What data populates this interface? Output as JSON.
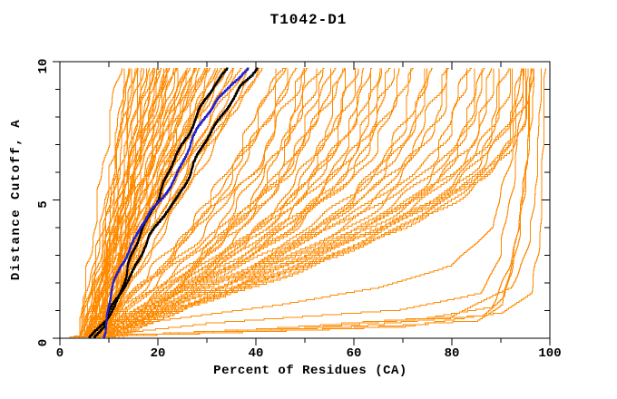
{
  "chart_data": {
    "type": "line",
    "title": "T1042-D1",
    "xlabel": "Percent of Residues (CA)",
    "ylabel": "Distance Cutoff, A",
    "xlim": [
      0,
      100
    ],
    "ylim": [
      0,
      10
    ],
    "x_major_ticks": [
      0,
      20,
      40,
      60,
      80,
      100
    ],
    "x_minor_ticks": [
      10,
      30,
      50,
      70,
      90
    ],
    "y_major_ticks": [
      0,
      5,
      10
    ],
    "y_minor_ticks": [
      1,
      2,
      3,
      4,
      6,
      7,
      8,
      9
    ],
    "grid": false,
    "legend": "none",
    "curve_top_cutoff": 9.75,
    "colors": {
      "model_curves": "#ff8a00",
      "highlight_black": "#000000",
      "highlight_blue": "#2222cc",
      "frame": "#000000",
      "background": "#ffffff"
    },
    "model_curves_format": "[percent_at_cutoff_0, percent_at_cutoff_9.75, bow]",
    "model_curves": [
      [
        4,
        12,
        -0.05
      ],
      [
        7,
        13,
        0.02
      ],
      [
        5,
        14,
        -0.03
      ],
      [
        9,
        14,
        0.0
      ],
      [
        6,
        15,
        -0.07
      ],
      [
        8,
        15,
        0.03
      ],
      [
        4,
        16,
        -0.02
      ],
      [
        10,
        16,
        -0.05
      ],
      [
        5,
        17,
        0.01
      ],
      [
        7,
        17,
        -0.06
      ],
      [
        6,
        18,
        0.02
      ],
      [
        9,
        18,
        -0.04
      ],
      [
        5,
        19,
        0.0
      ],
      [
        8,
        19,
        -0.07
      ],
      [
        4,
        20,
        0.02
      ],
      [
        7,
        20,
        -0.03
      ],
      [
        10,
        20,
        -0.06
      ],
      [
        6,
        21,
        0.01
      ],
      [
        9,
        21,
        -0.05
      ],
      [
        5,
        22,
        0.03
      ],
      [
        8,
        22,
        -0.02
      ],
      [
        6,
        22,
        -0.07
      ],
      [
        4,
        23,
        0.0
      ],
      [
        9,
        23,
        -0.04
      ],
      [
        7,
        24,
        0.02
      ],
      [
        5,
        24,
        -0.06
      ],
      [
        10,
        25,
        -0.01
      ],
      [
        6,
        25,
        0.03
      ],
      [
        8,
        26,
        -0.05
      ],
      [
        5,
        26,
        0.0
      ],
      [
        7,
        27,
        -0.03
      ],
      [
        9,
        27,
        0.02
      ],
      [
        4,
        28,
        -0.06
      ],
      [
        6,
        28,
        0.01
      ],
      [
        10,
        29,
        -0.04
      ],
      [
        5,
        29,
        0.03
      ],
      [
        8,
        30,
        -0.02
      ],
      [
        7,
        30,
        -0.07
      ],
      [
        6,
        31,
        0.0
      ],
      [
        9,
        32,
        -0.05
      ],
      [
        5,
        32,
        0.02
      ],
      [
        7,
        33,
        -0.03
      ],
      [
        4,
        34,
        0.01
      ],
      [
        8,
        34,
        -0.06
      ],
      [
        6,
        35,
        0.02
      ],
      [
        10,
        36,
        -0.04
      ],
      [
        7,
        37,
        0.0
      ],
      [
        5,
        38,
        -0.05
      ],
      [
        9,
        39,
        0.02
      ],
      [
        6,
        40,
        -0.03
      ],
      [
        8,
        41,
        0.01
      ],
      [
        7,
        42,
        -0.06
      ],
      [
        5,
        44,
        0.12
      ],
      [
        8,
        45,
        0.15
      ],
      [
        6,
        46,
        0.13
      ],
      [
        10,
        47,
        0.18
      ],
      [
        7,
        48,
        0.14
      ],
      [
        12,
        49,
        0.2
      ],
      [
        5,
        50,
        0.16
      ],
      [
        9,
        51,
        0.22
      ],
      [
        6,
        52,
        0.15
      ],
      [
        11,
        53,
        0.19
      ],
      [
        7,
        54,
        0.23
      ],
      [
        13,
        55,
        0.17
      ],
      [
        5,
        56,
        0.21
      ],
      [
        8,
        57,
        0.25
      ],
      [
        6,
        58,
        0.18
      ],
      [
        10,
        59,
        0.22
      ],
      [
        7,
        60,
        0.26
      ],
      [
        12,
        61,
        0.2
      ],
      [
        5,
        62,
        0.24
      ],
      [
        9,
        63,
        0.27
      ],
      [
        6,
        64,
        0.21
      ],
      [
        11,
        65,
        0.25
      ],
      [
        8,
        66,
        0.28
      ],
      [
        5,
        67,
        0.22
      ],
      [
        10,
        68,
        0.26
      ],
      [
        7,
        70,
        0.24
      ],
      [
        12,
        71,
        0.27
      ],
      [
        6,
        72,
        0.25
      ],
      [
        9,
        74,
        0.28
      ],
      [
        5,
        75,
        0.26
      ],
      [
        11,
        76,
        0.24
      ],
      [
        7,
        78,
        0.27
      ],
      [
        8,
        79,
        0.25
      ],
      [
        6,
        80,
        0.28
      ],
      [
        10,
        82,
        0.26
      ],
      [
        4,
        83,
        0.3
      ],
      [
        8,
        84,
        0.31
      ],
      [
        5,
        85,
        0.29
      ],
      [
        9,
        86,
        0.32
      ],
      [
        6,
        87,
        0.3
      ],
      [
        3,
        88,
        0.31
      ],
      [
        7,
        89,
        0.33
      ],
      [
        5,
        90,
        0.3
      ],
      [
        8,
        91,
        0.32
      ],
      [
        4,
        92,
        0.31
      ],
      [
        6,
        93,
        0.33
      ],
      [
        9,
        94,
        0.3
      ],
      [
        5,
        95,
        0.32
      ],
      [
        7,
        96,
        0.31
      ],
      [
        6,
        94,
        0.33
      ]
    ],
    "special_model_curves_format": "list of [percent, cutoff] vertices",
    "special_model_curves": [
      [
        [
          2,
          0
        ],
        [
          55,
          0.3
        ],
        [
          85,
          0.6
        ],
        [
          90,
          1.2
        ],
        [
          93,
          3
        ],
        [
          95,
          6
        ],
        [
          96,
          9.75
        ]
      ],
      [
        [
          3,
          0
        ],
        [
          60,
          0.4
        ],
        [
          87,
          0.8
        ],
        [
          91,
          1.5
        ],
        [
          94,
          4
        ],
        [
          96,
          7
        ],
        [
          97,
          9.75
        ]
      ],
      [
        [
          2,
          0
        ],
        [
          40,
          0.3
        ],
        [
          75,
          0.7
        ],
        [
          88,
          1.1
        ],
        [
          92,
          2.5
        ],
        [
          95,
          5.5
        ],
        [
          96.5,
          9.75
        ]
      ],
      [
        [
          4,
          0
        ],
        [
          30,
          0.5
        ],
        [
          70,
          1.0
        ],
        [
          86,
          1.6
        ],
        [
          90,
          3
        ],
        [
          93,
          6
        ],
        [
          95,
          9.75
        ]
      ],
      [
        [
          3,
          0
        ],
        [
          70,
          0.4
        ],
        [
          90,
          0.9
        ],
        [
          96,
          1.6
        ],
        [
          97.5,
          3
        ],
        [
          98,
          5
        ],
        [
          98.3,
          7.5
        ],
        [
          98.6,
          9.75
        ]
      ],
      [
        [
          2,
          0
        ],
        [
          50,
          0.35
        ],
        [
          80,
          0.75
        ],
        [
          92,
          1.8
        ],
        [
          96,
          3.5
        ],
        [
          97.5,
          6.5
        ],
        [
          98,
          9.75
        ]
      ],
      [
        [
          5,
          0
        ],
        [
          20,
          0.6
        ],
        [
          45,
          1.2
        ],
        [
          65,
          1.8
        ],
        [
          80,
          2.6
        ],
        [
          88,
          4
        ],
        [
          92,
          6.5
        ],
        [
          94,
          9.75
        ]
      ]
    ],
    "highlight_curves": [
      {
        "name": "highlight-black-1",
        "color": "#000000",
        "points": [
          [
            6,
            0
          ],
          [
            9,
            0.6
          ],
          [
            11.5,
            1.5
          ],
          [
            13.5,
            2.5
          ],
          [
            15,
            3.2
          ],
          [
            16.5,
            4
          ],
          [
            18,
            4.6
          ],
          [
            19.5,
            5
          ],
          [
            21,
            5.6
          ],
          [
            22.5,
            6.2
          ],
          [
            24.5,
            7
          ],
          [
            26.5,
            7.7
          ],
          [
            28.5,
            8.4
          ],
          [
            31,
            9
          ],
          [
            33,
            9.5
          ],
          [
            34,
            9.75
          ]
        ]
      },
      {
        "name": "highlight-black-2",
        "color": "#000000",
        "points": [
          [
            7,
            0
          ],
          [
            9,
            0.4
          ],
          [
            11,
            1.2
          ],
          [
            14,
            2.2
          ],
          [
            16.5,
            3
          ],
          [
            19,
            3.8
          ],
          [
            21.5,
            4.5
          ],
          [
            23.5,
            5
          ],
          [
            25.5,
            5.6
          ],
          [
            27.5,
            6.3
          ],
          [
            29.5,
            7
          ],
          [
            32,
            7.8
          ],
          [
            34.5,
            8.5
          ],
          [
            37,
            9.1
          ],
          [
            39.5,
            9.5
          ],
          [
            40.5,
            9.75
          ]
        ]
      },
      {
        "name": "highlight-blue",
        "color": "#2222cc",
        "points": [
          [
            9,
            0
          ],
          [
            10,
            0.6
          ],
          [
            11,
            1.5
          ],
          [
            12.5,
            2.5
          ],
          [
            14.5,
            3.2
          ],
          [
            17,
            4
          ],
          [
            19.5,
            4.6
          ],
          [
            21.5,
            5
          ],
          [
            23.5,
            5.7
          ],
          [
            25.5,
            6.4
          ],
          [
            27.5,
            7.1
          ],
          [
            30,
            7.9
          ],
          [
            32.5,
            8.6
          ],
          [
            35.5,
            9.2
          ],
          [
            38,
            9.6
          ],
          [
            39,
            9.75
          ]
        ]
      }
    ]
  }
}
